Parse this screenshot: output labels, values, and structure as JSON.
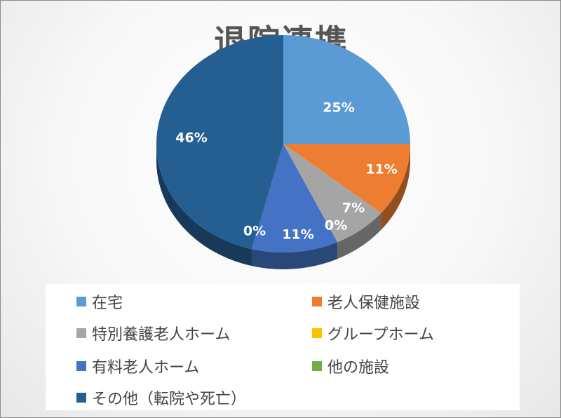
{
  "title": "退院連携",
  "chart_data": {
    "type": "pie",
    "title": "退院連携",
    "categories": [
      "在宅",
      "老人保健施設",
      "特別養護老人ホーム",
      "グループホーム",
      "有料老人ホーム",
      "他の施設",
      "その他（転院や死亡）"
    ],
    "values": [
      25,
      11,
      7,
      0,
      11,
      0,
      46
    ],
    "data_labels": [
      "25%",
      "11%",
      "7%",
      "0%",
      "11%",
      "0%",
      "46%"
    ],
    "colors": [
      "#5b9bd5",
      "#ed7d31",
      "#a5a5a5",
      "#ffc000",
      "#4472c4",
      "#70ad47",
      "#255e91"
    ],
    "legend_position": "bottom",
    "style": "3d"
  },
  "legend": [
    {
      "label": "在宅",
      "color": "#5b9bd5"
    },
    {
      "label": "老人保健施設",
      "color": "#ed7d31"
    },
    {
      "label": "特別養護老人ホーム",
      "color": "#a5a5a5"
    },
    {
      "label": "グループホーム",
      "color": "#ffc000"
    },
    {
      "label": "有料老人ホーム",
      "color": "#4472c4"
    },
    {
      "label": "他の施設",
      "color": "#70ad47"
    },
    {
      "label": "その他（転院や死亡）",
      "color": "#255e91"
    }
  ]
}
